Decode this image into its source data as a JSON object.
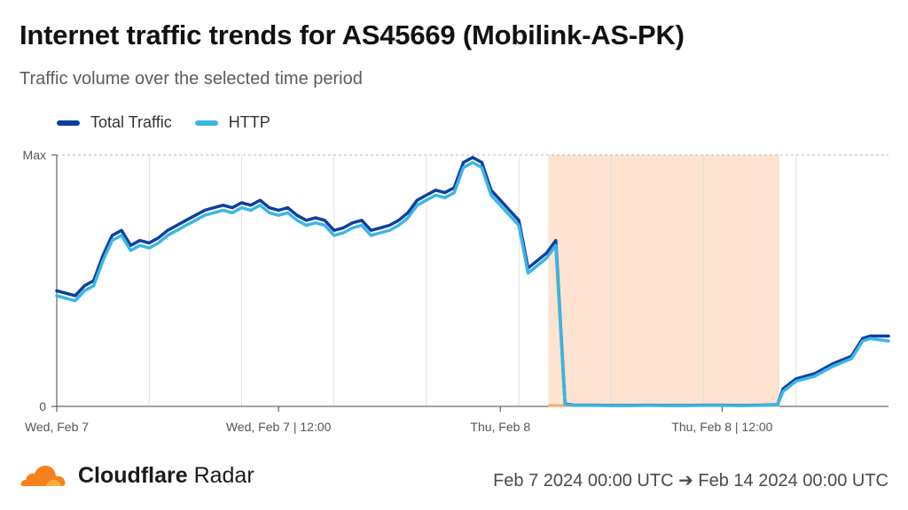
{
  "header": {
    "title": "Internet traffic trends for AS45669 (Mobilink-AS-PK)",
    "subtitle": "Traffic volume over the selected time period"
  },
  "footer": {
    "brand_bold": "Cloudflare",
    "brand_rest": " Radar",
    "date_range": "Feb 7 2024 00:00 UTC ➔ Feb 14 2024 00:00 UTC"
  },
  "colors": {
    "total": "#0d3fa0",
    "http": "#3bb6e4",
    "highlight": "#fde3d0",
    "outage_marker": "#f5a86a"
  },
  "chart_data": {
    "type": "line",
    "title": "Internet traffic trends for AS45669 (Mobilink-AS-PK)",
    "subtitle": "Traffic volume over the selected time period",
    "x_unit": "hours since Feb 7 00:00 UTC",
    "x_range": [
      0,
      45
    ],
    "y_range": [
      0,
      1
    ],
    "y_tick_labels": [
      {
        "value": 0,
        "label": "0"
      },
      {
        "value": 1,
        "label": "Max"
      }
    ],
    "x_tick_labels": [
      {
        "x": 0,
        "label": "Wed, Feb 7"
      },
      {
        "x": 12,
        "label": "Wed, Feb 7 | 12:00"
      },
      {
        "x": 24,
        "label": "Thu, Feb 8"
      },
      {
        "x": 36,
        "label": "Thu, Feb 8 | 12:00"
      }
    ],
    "grid": true,
    "legend_position": "top-left",
    "highlight_range": {
      "from": 26.6,
      "to": 39.1
    },
    "series": [
      {
        "name": "Total Traffic",
        "points": [
          [
            0,
            0.46
          ],
          [
            0.5,
            0.45
          ],
          [
            1,
            0.44
          ],
          [
            1.5,
            0.48
          ],
          [
            2,
            0.5
          ],
          [
            2.5,
            0.6
          ],
          [
            3,
            0.68
          ],
          [
            3.5,
            0.7
          ],
          [
            4,
            0.64
          ],
          [
            4.5,
            0.66
          ],
          [
            5,
            0.65
          ],
          [
            5.5,
            0.67
          ],
          [
            6,
            0.7
          ],
          [
            6.5,
            0.72
          ],
          [
            7,
            0.74
          ],
          [
            7.5,
            0.76
          ],
          [
            8,
            0.78
          ],
          [
            8.5,
            0.79
          ],
          [
            9,
            0.8
          ],
          [
            9.5,
            0.79
          ],
          [
            10,
            0.81
          ],
          [
            10.5,
            0.8
          ],
          [
            11,
            0.82
          ],
          [
            11.5,
            0.79
          ],
          [
            12,
            0.78
          ],
          [
            12.5,
            0.79
          ],
          [
            13,
            0.76
          ],
          [
            13.5,
            0.74
          ],
          [
            14,
            0.75
          ],
          [
            14.5,
            0.74
          ],
          [
            15,
            0.7
          ],
          [
            15.5,
            0.71
          ],
          [
            16,
            0.73
          ],
          [
            16.5,
            0.74
          ],
          [
            17,
            0.7
          ],
          [
            17.5,
            0.71
          ],
          [
            18,
            0.72
          ],
          [
            18.5,
            0.74
          ],
          [
            19,
            0.77
          ],
          [
            19.5,
            0.82
          ],
          [
            20,
            0.84
          ],
          [
            20.5,
            0.86
          ],
          [
            21,
            0.85
          ],
          [
            21.5,
            0.87
          ],
          [
            22,
            0.97
          ],
          [
            22.5,
            0.99
          ],
          [
            23,
            0.97
          ],
          [
            23.5,
            0.86
          ],
          [
            24,
            0.82
          ],
          [
            24.5,
            0.78
          ],
          [
            25,
            0.74
          ],
          [
            25.5,
            0.55
          ],
          [
            26,
            0.58
          ],
          [
            26.5,
            0.61
          ],
          [
            27,
            0.66
          ],
          [
            27.5,
            0.01
          ],
          [
            28,
            0.005
          ],
          [
            29,
            0.005
          ],
          [
            30,
            0.004
          ],
          [
            31,
            0.004
          ],
          [
            32,
            0.005
          ],
          [
            33,
            0.004
          ],
          [
            34,
            0.004
          ],
          [
            35,
            0.005
          ],
          [
            36,
            0.005
          ],
          [
            37,
            0.004
          ],
          [
            38,
            0.005
          ],
          [
            39,
            0.007
          ],
          [
            39.3,
            0.07
          ],
          [
            40,
            0.11
          ],
          [
            41,
            0.13
          ],
          [
            42,
            0.17
          ],
          [
            43,
            0.2
          ],
          [
            43.6,
            0.27
          ],
          [
            44,
            0.28
          ],
          [
            45,
            0.28
          ]
        ]
      },
      {
        "name": "HTTP",
        "points": [
          [
            0,
            0.44
          ],
          [
            0.5,
            0.43
          ],
          [
            1,
            0.42
          ],
          [
            1.5,
            0.46
          ],
          [
            2,
            0.48
          ],
          [
            2.5,
            0.58
          ],
          [
            3,
            0.66
          ],
          [
            3.5,
            0.68
          ],
          [
            4,
            0.62
          ],
          [
            4.5,
            0.64
          ],
          [
            5,
            0.63
          ],
          [
            5.5,
            0.65
          ],
          [
            6,
            0.68
          ],
          [
            6.5,
            0.7
          ],
          [
            7,
            0.72
          ],
          [
            7.5,
            0.74
          ],
          [
            8,
            0.76
          ],
          [
            8.5,
            0.77
          ],
          [
            9,
            0.78
          ],
          [
            9.5,
            0.77
          ],
          [
            10,
            0.79
          ],
          [
            10.5,
            0.78
          ],
          [
            11,
            0.8
          ],
          [
            11.5,
            0.77
          ],
          [
            12,
            0.76
          ],
          [
            12.5,
            0.77
          ],
          [
            13,
            0.74
          ],
          [
            13.5,
            0.72
          ],
          [
            14,
            0.73
          ],
          [
            14.5,
            0.72
          ],
          [
            15,
            0.68
          ],
          [
            15.5,
            0.69
          ],
          [
            16,
            0.71
          ],
          [
            16.5,
            0.72
          ],
          [
            17,
            0.68
          ],
          [
            17.5,
            0.69
          ],
          [
            18,
            0.7
          ],
          [
            18.5,
            0.72
          ],
          [
            19,
            0.75
          ],
          [
            19.5,
            0.8
          ],
          [
            20,
            0.82
          ],
          [
            20.5,
            0.84
          ],
          [
            21,
            0.83
          ],
          [
            21.5,
            0.85
          ],
          [
            22,
            0.95
          ],
          [
            22.5,
            0.97
          ],
          [
            23,
            0.95
          ],
          [
            23.5,
            0.84
          ],
          [
            24,
            0.8
          ],
          [
            24.5,
            0.76
          ],
          [
            25,
            0.72
          ],
          [
            25.5,
            0.53
          ],
          [
            26,
            0.56
          ],
          [
            26.5,
            0.59
          ],
          [
            27,
            0.64
          ],
          [
            27.5,
            0.008
          ],
          [
            28,
            0.004
          ],
          [
            29,
            0.004
          ],
          [
            30,
            0.003
          ],
          [
            31,
            0.003
          ],
          [
            32,
            0.004
          ],
          [
            33,
            0.003
          ],
          [
            34,
            0.003
          ],
          [
            35,
            0.004
          ],
          [
            36,
            0.004
          ],
          [
            37,
            0.003
          ],
          [
            38,
            0.004
          ],
          [
            39,
            0.006
          ],
          [
            39.3,
            0.06
          ],
          [
            40,
            0.1
          ],
          [
            41,
            0.12
          ],
          [
            42,
            0.16
          ],
          [
            43,
            0.19
          ],
          [
            43.6,
            0.26
          ],
          [
            44,
            0.27
          ],
          [
            45,
            0.26
          ]
        ]
      }
    ]
  }
}
